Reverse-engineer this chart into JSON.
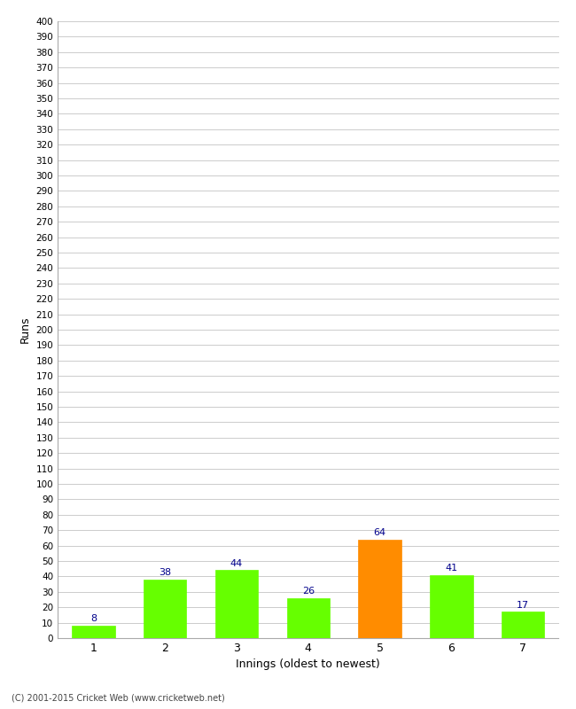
{
  "categories": [
    "1",
    "2",
    "3",
    "4",
    "5",
    "6",
    "7"
  ],
  "values": [
    8,
    38,
    44,
    26,
    64,
    41,
    17
  ],
  "bar_colors": [
    "#66ff00",
    "#66ff00",
    "#66ff00",
    "#66ff00",
    "#ff8c00",
    "#66ff00",
    "#66ff00"
  ],
  "label_color": "#00008b",
  "ylabel": "Runs",
  "xlabel": "Innings (oldest to newest)",
  "ylim": [
    0,
    400
  ],
  "background_color": "#ffffff",
  "grid_color": "#cccccc",
  "footer": "(C) 2001-2015 Cricket Web (www.cricketweb.net)"
}
